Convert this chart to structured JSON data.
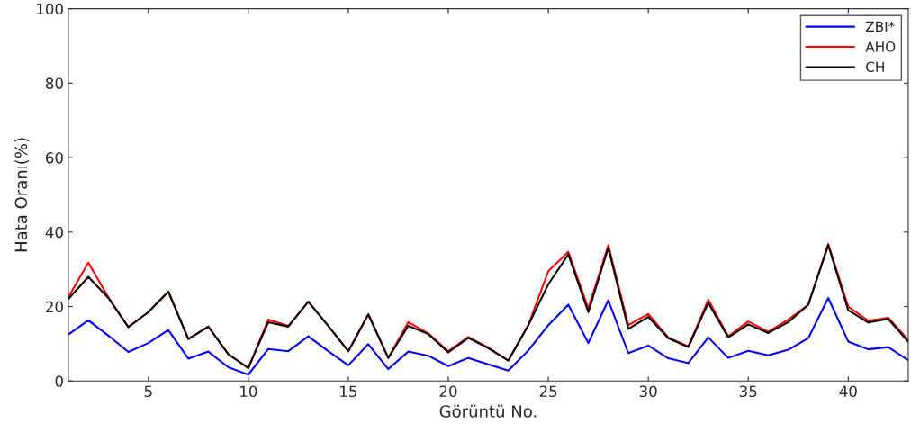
{
  "chart_data": {
    "type": "line",
    "xlabel": "Görüntü No.",
    "ylabel": "Hata Oranı(%)",
    "x": [
      1,
      2,
      3,
      4,
      5,
      6,
      7,
      8,
      9,
      10,
      11,
      12,
      13,
      14,
      15,
      16,
      17,
      18,
      19,
      20,
      21,
      22,
      23,
      24,
      25,
      26,
      27,
      28,
      29,
      30,
      31,
      32,
      33,
      34,
      35,
      36,
      37,
      38,
      39,
      40,
      41,
      42,
      43
    ],
    "series": [
      {
        "name": "ZBI*",
        "color": "#0000ff",
        "values": [
          12.5,
          16.3,
          12.2,
          7.8,
          10.2,
          13.7,
          6.0,
          7.9,
          3.7,
          1.7,
          8.6,
          8.0,
          12.0,
          8.0,
          4.2,
          9.9,
          3.2,
          7.9,
          6.8,
          4.0,
          6.2,
          4.5,
          2.8,
          8.2,
          15.0,
          20.5,
          10.2,
          21.7,
          7.5,
          9.5,
          6.1,
          4.8,
          11.7,
          6.2,
          8.1,
          6.9,
          8.4,
          11.5,
          22.3,
          10.6,
          8.5,
          9.1,
          5.6
        ]
      },
      {
        "name": "AHO",
        "color": "#ff0000",
        "values": [
          22.5,
          31.8,
          22.5,
          14.5,
          18.5,
          24.0,
          11.3,
          14.6,
          7.2,
          3.5,
          16.5,
          14.8,
          21.3,
          14.8,
          8.0,
          17.9,
          6.2,
          15.8,
          12.8,
          8.0,
          11.8,
          9.0,
          5.5,
          15.0,
          29.5,
          34.7,
          19.5,
          36.5,
          15.0,
          18.0,
          11.7,
          9.3,
          21.8,
          12.0,
          16.0,
          13.2,
          16.5,
          20.5,
          36.8,
          20.0,
          16.2,
          17.0,
          11.0
        ]
      },
      {
        "name": "CH",
        "color": "#000000",
        "values": [
          22.0,
          28.0,
          22.3,
          14.5,
          18.5,
          24.0,
          11.3,
          14.6,
          7.2,
          3.5,
          15.8,
          14.6,
          21.3,
          14.8,
          8.0,
          17.9,
          6.2,
          14.8,
          12.6,
          7.7,
          11.6,
          8.8,
          5.5,
          15.0,
          26.0,
          34.0,
          18.5,
          35.8,
          14.0,
          17.2,
          11.5,
          9.1,
          21.0,
          11.7,
          15.2,
          12.9,
          15.8,
          20.5,
          36.5,
          19.0,
          15.7,
          16.7,
          10.5
        ]
      }
    ],
    "xlim": [
      1,
      43
    ],
    "xticks": [
      5,
      10,
      15,
      20,
      25,
      30,
      35,
      40
    ],
    "ylim": [
      0,
      100
    ],
    "yticks": [
      0,
      20,
      40,
      60,
      80,
      100
    ],
    "legend": "top right",
    "line_style": "solid"
  }
}
